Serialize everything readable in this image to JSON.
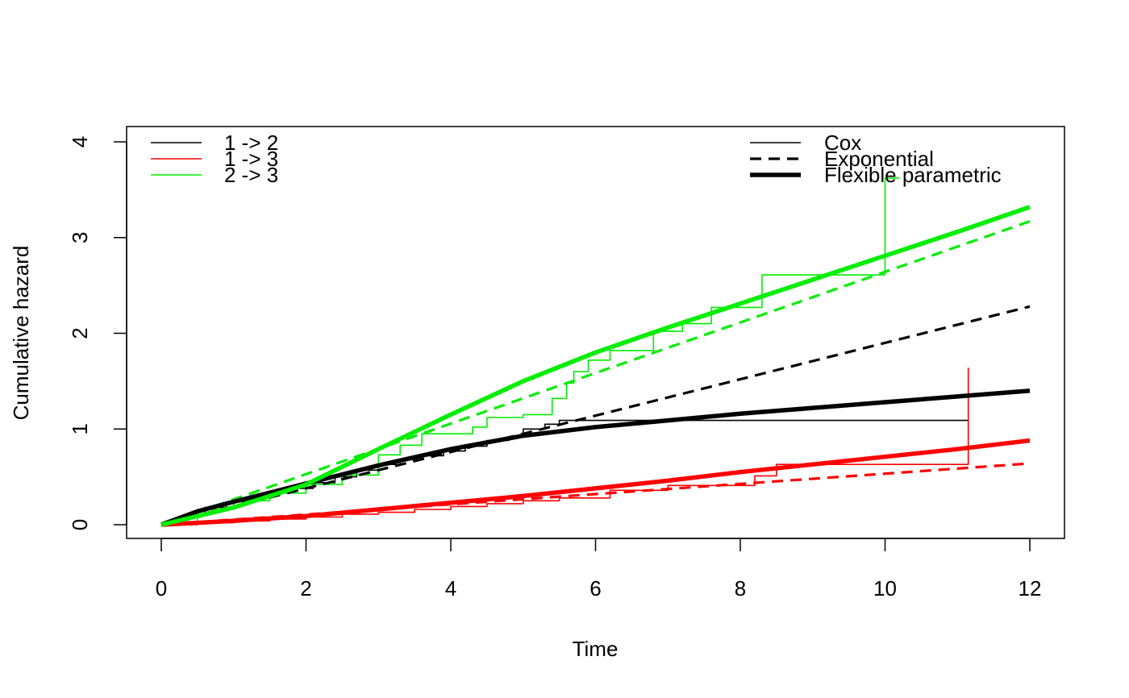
{
  "chart_data": {
    "type": "line",
    "title": "",
    "xlabel": "Time",
    "ylabel": "Cumulative hazard",
    "xlim": [
      0,
      12
    ],
    "ylim": [
      0,
      4
    ],
    "xticks": [
      "0",
      "2",
      "4",
      "6",
      "8",
      "10",
      "12"
    ],
    "yticks": [
      "0",
      "1",
      "2",
      "3",
      "4"
    ],
    "grid": false,
    "legends": [
      {
        "placement": "top-left",
        "entries": [
          {
            "label": "1 -> 2",
            "color": "#000000"
          },
          {
            "label": "1 -> 3",
            "color": "#ff0000"
          },
          {
            "label": "2 -> 3",
            "color": "#00ee00"
          }
        ]
      },
      {
        "placement": "top-right",
        "entries": [
          {
            "label": "Cox",
            "style": "solid-thin"
          },
          {
            "label": "Exponential",
            "style": "dashed"
          },
          {
            "label": "Flexible parametric",
            "style": "solid-thick"
          }
        ]
      }
    ],
    "colors": {
      "1 -> 2": "#000000",
      "1 -> 3": "#ff0000",
      "2 -> 3": "#00ee00"
    },
    "series": [
      {
        "transition": "1 -> 2",
        "model": "Cox",
        "step": true,
        "x": [
          0,
          0.3,
          0.6,
          0.9,
          1.2,
          1.5,
          1.8,
          2.1,
          2.4,
          2.7,
          3.0,
          3.3,
          3.6,
          3.9,
          4.2,
          4.5,
          4.8,
          5.0,
          5.3,
          5.5,
          11.15
        ],
        "y": [
          0,
          0.1,
          0.18,
          0.24,
          0.29,
          0.34,
          0.38,
          0.44,
          0.5,
          0.57,
          0.63,
          0.68,
          0.72,
          0.77,
          0.82,
          0.88,
          0.92,
          1.0,
          1.05,
          1.09,
          1.09
        ]
      },
      {
        "transition": "1 -> 2",
        "model": "Exponential",
        "x": [
          0,
          12
        ],
        "y": [
          0,
          2.28
        ]
      },
      {
        "transition": "1 -> 2",
        "model": "Flexible parametric",
        "x": [
          0,
          0.5,
          1,
          2,
          3,
          4,
          5,
          6,
          7,
          8,
          9,
          10,
          11,
          12
        ],
        "y": [
          0,
          0.14,
          0.24,
          0.43,
          0.62,
          0.79,
          0.93,
          1.02,
          1.09,
          1.16,
          1.22,
          1.28,
          1.34,
          1.4
        ]
      },
      {
        "transition": "1 -> 3",
        "model": "Cox",
        "step": true,
        "x": [
          0,
          0.5,
          1.0,
          1.5,
          2.0,
          2.5,
          3.0,
          3.5,
          4.0,
          4.5,
          5.0,
          5.5,
          6.2,
          7.0,
          8.2,
          8.5,
          11.15,
          11.15
        ],
        "y": [
          0,
          0.02,
          0.04,
          0.06,
          0.08,
          0.11,
          0.13,
          0.16,
          0.19,
          0.22,
          0.25,
          0.28,
          0.36,
          0.41,
          0.51,
          0.63,
          0.63,
          1.64
        ]
      },
      {
        "transition": "1 -> 3",
        "model": "Exponential",
        "x": [
          0,
          12
        ],
        "y": [
          0,
          0.64
        ]
      },
      {
        "transition": "1 -> 3",
        "model": "Flexible parametric",
        "x": [
          0,
          1,
          2,
          3,
          4,
          5,
          6,
          7,
          8,
          9,
          10,
          11,
          12
        ],
        "y": [
          0,
          0.04,
          0.09,
          0.16,
          0.23,
          0.3,
          0.38,
          0.46,
          0.55,
          0.63,
          0.71,
          0.79,
          0.88
        ]
      },
      {
        "transition": "2 -> 3",
        "model": "Cox",
        "step": true,
        "x": [
          0,
          0.5,
          1.0,
          1.5,
          2.0,
          2.5,
          3.0,
          3.3,
          3.6,
          4.3,
          4.5,
          5.0,
          5.4,
          5.6,
          5.7,
          5.9,
          6.2,
          6.8,
          7.2,
          7.6,
          8.3,
          10.0,
          10.2
        ],
        "y": [
          0,
          0.16,
          0.25,
          0.33,
          0.42,
          0.52,
          0.73,
          0.83,
          0.95,
          1.02,
          1.12,
          1.15,
          1.32,
          1.48,
          1.6,
          1.72,
          1.82,
          2.02,
          2.1,
          2.27,
          2.61,
          3.62,
          3.62
        ]
      },
      {
        "transition": "2 -> 3",
        "model": "Exponential",
        "x": [
          0,
          12
        ],
        "y": [
          0,
          3.17
        ]
      },
      {
        "transition": "2 -> 3",
        "model": "Flexible parametric",
        "x": [
          0,
          1,
          2,
          3,
          4,
          5,
          6,
          7,
          8,
          9,
          10,
          11,
          12
        ],
        "y": [
          0,
          0.18,
          0.42,
          0.79,
          1.15,
          1.5,
          1.8,
          2.06,
          2.31,
          2.56,
          2.81,
          3.06,
          3.32
        ]
      }
    ]
  }
}
